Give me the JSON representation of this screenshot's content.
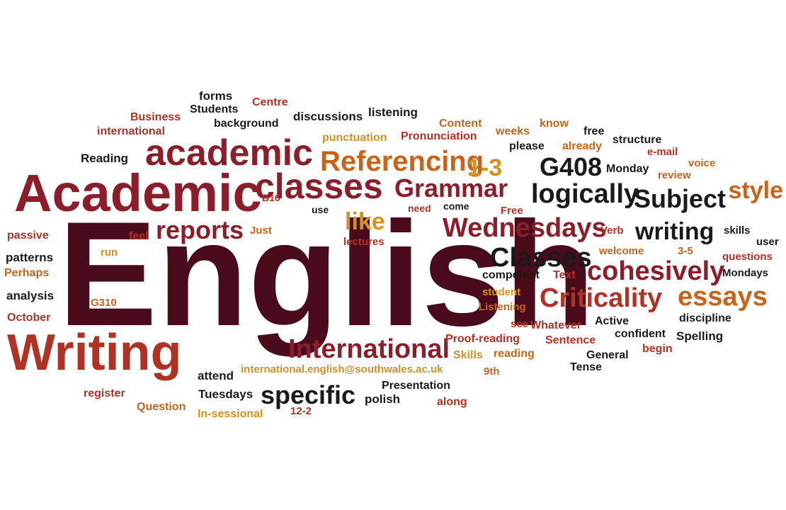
{
  "palette": {
    "maroon": "#4a0c1c",
    "crimson": "#8c1e2c",
    "red": "#b03224",
    "orange": "#c8641a",
    "amber": "#d49020",
    "black": "#1a1a1a"
  },
  "words": [
    {
      "text": "English",
      "color": "maroon"
    },
    {
      "text": "Academic",
      "color": "crimson"
    },
    {
      "text": "Writing",
      "color": "red"
    },
    {
      "text": "academic",
      "color": "crimson"
    },
    {
      "text": "classes",
      "color": "crimson"
    },
    {
      "text": "Referencing",
      "color": "orange"
    },
    {
      "text": "1-3",
      "color": "amber"
    },
    {
      "text": "Grammar",
      "color": "crimson"
    },
    {
      "text": "G408",
      "color": "black"
    },
    {
      "text": "logically",
      "color": "black"
    },
    {
      "text": "Subject",
      "color": "black"
    },
    {
      "text": "style",
      "color": "orange"
    },
    {
      "text": "reports",
      "color": "crimson"
    },
    {
      "text": "like",
      "color": "amber"
    },
    {
      "text": "Wednesdays",
      "color": "crimson"
    },
    {
      "text": "writing",
      "color": "black"
    },
    {
      "text": "Classes",
      "color": "black"
    },
    {
      "text": "cohesively",
      "color": "crimson"
    },
    {
      "text": "Criticality",
      "color": "red"
    },
    {
      "text": "essays",
      "color": "orange"
    },
    {
      "text": "International",
      "color": "crimson"
    },
    {
      "text": "specific",
      "color": "black"
    },
    {
      "text": "forms",
      "color": "black"
    },
    {
      "text": "Centre",
      "color": "red"
    },
    {
      "text": "Business",
      "color": "red"
    },
    {
      "text": "Students",
      "color": "black"
    },
    {
      "text": "international",
      "color": "red"
    },
    {
      "text": "background",
      "color": "black"
    },
    {
      "text": "discussions",
      "color": "black"
    },
    {
      "text": "listening",
      "color": "black"
    },
    {
      "text": "Content",
      "color": "orange"
    },
    {
      "text": "know",
      "color": "orange"
    },
    {
      "text": "weeks",
      "color": "orange"
    },
    {
      "text": "free",
      "color": "black"
    },
    {
      "text": "punctuation",
      "color": "amber"
    },
    {
      "text": "Pronunciation",
      "color": "red"
    },
    {
      "text": "structure",
      "color": "black"
    },
    {
      "text": "please",
      "color": "black"
    },
    {
      "text": "already",
      "color": "orange"
    },
    {
      "text": "e-mail",
      "color": "red"
    },
    {
      "text": "Reading",
      "color": "black"
    },
    {
      "text": "voice",
      "color": "orange"
    },
    {
      "text": "Monday",
      "color": "black"
    },
    {
      "text": "review",
      "color": "orange"
    },
    {
      "text": "B16",
      "color": "red"
    },
    {
      "text": "use",
      "color": "black"
    },
    {
      "text": "need",
      "color": "red"
    },
    {
      "text": "come",
      "color": "black"
    },
    {
      "text": "Free",
      "color": "red"
    },
    {
      "text": "passive",
      "color": "red"
    },
    {
      "text": "Just",
      "color": "orange"
    },
    {
      "text": "feel",
      "color": "red"
    },
    {
      "text": "lectures",
      "color": "red"
    },
    {
      "text": "Verb",
      "color": "red"
    },
    {
      "text": "skills",
      "color": "black"
    },
    {
      "text": "user",
      "color": "black"
    },
    {
      "text": "patterns",
      "color": "black"
    },
    {
      "text": "run",
      "color": "amber"
    },
    {
      "text": "welcome",
      "color": "orange"
    },
    {
      "text": "3-5",
      "color": "orange"
    },
    {
      "text": "questions",
      "color": "red"
    },
    {
      "text": "Perhaps",
      "color": "orange"
    },
    {
      "text": "competent",
      "color": "black"
    },
    {
      "text": "Text",
      "color": "red"
    },
    {
      "text": "Mondays",
      "color": "black"
    },
    {
      "text": "analysis",
      "color": "black"
    },
    {
      "text": "student",
      "color": "amber"
    },
    {
      "text": "G310",
      "color": "orange"
    },
    {
      "text": "Listening",
      "color": "orange"
    },
    {
      "text": "discipline",
      "color": "black"
    },
    {
      "text": "October",
      "color": "red"
    },
    {
      "text": "see",
      "color": "red"
    },
    {
      "text": "Whatever",
      "color": "red"
    },
    {
      "text": "Active",
      "color": "black"
    },
    {
      "text": "confident",
      "color": "black"
    },
    {
      "text": "Spelling",
      "color": "black"
    },
    {
      "text": "Proof-reading",
      "color": "red"
    },
    {
      "text": "Sentence",
      "color": "red"
    },
    {
      "text": "Skills",
      "color": "amber"
    },
    {
      "text": "reading",
      "color": "orange"
    },
    {
      "text": "General",
      "color": "black"
    },
    {
      "text": "begin",
      "color": "red"
    },
    {
      "text": "attend",
      "color": "black"
    },
    {
      "text": "international.english@southwales.ac.uk",
      "color": "amber"
    },
    {
      "text": "9th",
      "color": "orange"
    },
    {
      "text": "Tense",
      "color": "black"
    },
    {
      "text": "Presentation",
      "color": "black"
    },
    {
      "text": "register",
      "color": "red"
    },
    {
      "text": "Tuesdays",
      "color": "black"
    },
    {
      "text": "polish",
      "color": "black"
    },
    {
      "text": "along",
      "color": "red"
    },
    {
      "text": "Question",
      "color": "orange"
    },
    {
      "text": "In-sessional",
      "color": "amber"
    },
    {
      "text": "12-2",
      "color": "red"
    }
  ]
}
